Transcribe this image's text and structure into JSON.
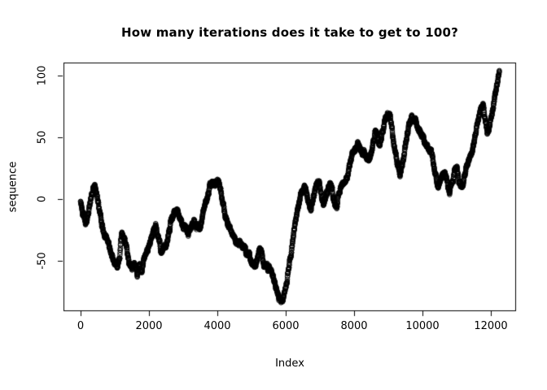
{
  "chart_data": {
    "type": "scatter",
    "title": "How many iterations does it take to get to 100?",
    "xlabel": "Index",
    "ylabel": "sequence",
    "x_ticks": [
      0,
      2000,
      4000,
      6000,
      8000,
      10000,
      12000
    ],
    "y_ticks": [
      -50,
      0,
      50,
      100
    ],
    "xlim": [
      -490,
      12740
    ],
    "ylim": [
      -90,
      109
    ],
    "grid": false,
    "legend": "none",
    "marker": "open-circle",
    "point_color": "#000000",
    "background": "#ffffff",
    "series": [
      {
        "name": "sequence",
        "keypoints": [
          [
            0,
            -3
          ],
          [
            40,
            -8
          ],
          [
            80,
            -13
          ],
          [
            120,
            -17
          ],
          [
            160,
            -20
          ],
          [
            200,
            -16
          ],
          [
            240,
            -11
          ],
          [
            280,
            -5
          ],
          [
            320,
            2
          ],
          [
            360,
            7
          ],
          [
            400,
            10
          ],
          [
            440,
            8
          ],
          [
            480,
            1
          ],
          [
            520,
            -5
          ],
          [
            560,
            -10
          ],
          [
            600,
            -16
          ],
          [
            650,
            -22
          ],
          [
            700,
            -27
          ],
          [
            750,
            -30
          ],
          [
            800,
            -34
          ],
          [
            850,
            -39
          ],
          [
            900,
            -44
          ],
          [
            950,
            -49
          ],
          [
            1000,
            -52
          ],
          [
            1050,
            -53
          ],
          [
            1100,
            -51
          ],
          [
            1140,
            -45
          ],
          [
            1180,
            -33
          ],
          [
            1220,
            -24
          ],
          [
            1260,
            -27
          ],
          [
            1300,
            -33
          ],
          [
            1340,
            -39
          ],
          [
            1380,
            -45
          ],
          [
            1420,
            -51
          ],
          [
            1460,
            -55
          ],
          [
            1500,
            -58
          ],
          [
            1540,
            -55
          ],
          [
            1580,
            -52
          ],
          [
            1620,
            -56
          ],
          [
            1660,
            -60
          ],
          [
            1700,
            -57
          ],
          [
            1740,
            -55
          ],
          [
            1780,
            -59
          ],
          [
            1820,
            -57
          ],
          [
            1860,
            -52
          ],
          [
            1900,
            -48
          ],
          [
            1950,
            -44
          ],
          [
            2000,
            -39
          ],
          [
            2050,
            -34
          ],
          [
            2100,
            -29
          ],
          [
            2150,
            -25
          ],
          [
            2200,
            -24
          ],
          [
            2250,
            -28
          ],
          [
            2300,
            -34
          ],
          [
            2350,
            -40
          ],
          [
            2400,
            -43
          ],
          [
            2450,
            -42
          ],
          [
            2500,
            -37
          ],
          [
            2550,
            -31
          ],
          [
            2600,
            -24
          ],
          [
            2650,
            -18
          ],
          [
            2700,
            -13
          ],
          [
            2750,
            -10
          ],
          [
            2800,
            -9
          ],
          [
            2850,
            -11
          ],
          [
            2900,
            -13
          ],
          [
            2950,
            -17
          ],
          [
            3000,
            -21
          ],
          [
            3050,
            -25
          ],
          [
            3100,
            -27
          ],
          [
            3150,
            -28
          ],
          [
            3200,
            -25
          ],
          [
            3250,
            -20
          ],
          [
            3300,
            -17
          ],
          [
            3350,
            -19
          ],
          [
            3400,
            -23
          ],
          [
            3450,
            -25
          ],
          [
            3500,
            -22
          ],
          [
            3550,
            -16
          ],
          [
            3600,
            -10
          ],
          [
            3650,
            -4
          ],
          [
            3700,
            1
          ],
          [
            3750,
            6
          ],
          [
            3800,
            11
          ],
          [
            3850,
            14
          ],
          [
            3900,
            16
          ],
          [
            3950,
            12
          ],
          [
            4000,
            15
          ],
          [
            4050,
            11
          ],
          [
            4100,
            4
          ],
          [
            4150,
            -3
          ],
          [
            4200,
            -9
          ],
          [
            4250,
            -15
          ],
          [
            4300,
            -20
          ],
          [
            4350,
            -21
          ],
          [
            4400,
            -25
          ],
          [
            4450,
            -29
          ],
          [
            4500,
            -32
          ],
          [
            4550,
            -34
          ],
          [
            4600,
            -36
          ],
          [
            4650,
            -34
          ],
          [
            4700,
            -37
          ],
          [
            4750,
            -36
          ],
          [
            4800,
            -40
          ],
          [
            4850,
            -43
          ],
          [
            4900,
            -45
          ],
          [
            4950,
            -47
          ],
          [
            5000,
            -50
          ],
          [
            5050,
            -53
          ],
          [
            5100,
            -55
          ],
          [
            5150,
            -50
          ],
          [
            5200,
            -45
          ],
          [
            5250,
            -42
          ],
          [
            5300,
            -46
          ],
          [
            5350,
            -50
          ],
          [
            5400,
            -52
          ],
          [
            5450,
            -54
          ],
          [
            5500,
            -55
          ],
          [
            5550,
            -58
          ],
          [
            5600,
            -61
          ],
          [
            5650,
            -65
          ],
          [
            5700,
            -70
          ],
          [
            5750,
            -75
          ],
          [
            5800,
            -80
          ],
          [
            5850,
            -82
          ],
          [
            5900,
            -81
          ],
          [
            5950,
            -77
          ],
          [
            6000,
            -70
          ],
          [
            6050,
            -62
          ],
          [
            6100,
            -52
          ],
          [
            6150,
            -43
          ],
          [
            6200,
            -34
          ],
          [
            6250,
            -25
          ],
          [
            6300,
            -17
          ],
          [
            6350,
            -9
          ],
          [
            6400,
            -2
          ],
          [
            6450,
            5
          ],
          [
            6500,
            10
          ],
          [
            6550,
            12
          ],
          [
            6600,
            5
          ],
          [
            6650,
            -3
          ],
          [
            6700,
            -9
          ],
          [
            6750,
            -7
          ],
          [
            6800,
            -1
          ],
          [
            6850,
            6
          ],
          [
            6900,
            11
          ],
          [
            6950,
            12
          ],
          [
            7000,
            8
          ],
          [
            7050,
            2
          ],
          [
            7100,
            -4
          ],
          [
            7150,
            -2
          ],
          [
            7200,
            5
          ],
          [
            7250,
            11
          ],
          [
            7300,
            13
          ],
          [
            7350,
            8
          ],
          [
            7400,
            2
          ],
          [
            7450,
            -3
          ],
          [
            7500,
            -4
          ],
          [
            7550,
            2
          ],
          [
            7600,
            9
          ],
          [
            7650,
            13
          ],
          [
            7700,
            14
          ],
          [
            7750,
            16
          ],
          [
            7800,
            19
          ],
          [
            7850,
            24
          ],
          [
            7900,
            29
          ],
          [
            7950,
            34
          ],
          [
            8000,
            38
          ],
          [
            8050,
            41
          ],
          [
            8100,
            43
          ],
          [
            8150,
            43
          ],
          [
            8200,
            40
          ],
          [
            8250,
            37
          ],
          [
            8300,
            40
          ],
          [
            8350,
            37
          ],
          [
            8400,
            33
          ],
          [
            8450,
            31
          ],
          [
            8500,
            36
          ],
          [
            8550,
            44
          ],
          [
            8600,
            51
          ],
          [
            8650,
            54
          ],
          [
            8700,
            48
          ],
          [
            8750,
            42
          ],
          [
            8800,
            48
          ],
          [
            8850,
            57
          ],
          [
            8900,
            63
          ],
          [
            8950,
            67
          ],
          [
            9000,
            70
          ],
          [
            9050,
            68
          ],
          [
            9100,
            61
          ],
          [
            9150,
            52
          ],
          [
            9200,
            42
          ],
          [
            9250,
            33
          ],
          [
            9300,
            26
          ],
          [
            9350,
            22
          ],
          [
            9400,
            27
          ],
          [
            9450,
            35
          ],
          [
            9500,
            43
          ],
          [
            9550,
            51
          ],
          [
            9600,
            58
          ],
          [
            9650,
            63
          ],
          [
            9700,
            66
          ],
          [
            9750,
            67
          ],
          [
            9800,
            64
          ],
          [
            9850,
            61
          ],
          [
            9900,
            58
          ],
          [
            9950,
            55
          ],
          [
            10000,
            52
          ],
          [
            10050,
            48
          ],
          [
            10100,
            45
          ],
          [
            10150,
            44
          ],
          [
            10200,
            42
          ],
          [
            10250,
            38
          ],
          [
            10300,
            31
          ],
          [
            10350,
            23
          ],
          [
            10400,
            16
          ],
          [
            10450,
            12
          ],
          [
            10500,
            14
          ],
          [
            10550,
            17
          ],
          [
            10600,
            20
          ],
          [
            10650,
            21
          ],
          [
            10700,
            15
          ],
          [
            10750,
            9
          ],
          [
            10800,
            7
          ],
          [
            10850,
            13
          ],
          [
            10900,
            19
          ],
          [
            10950,
            25
          ],
          [
            11000,
            27
          ],
          [
            11050,
            20
          ],
          [
            11100,
            12
          ],
          [
            11150,
            9
          ],
          [
            11200,
            14
          ],
          [
            11250,
            20
          ],
          [
            11300,
            26
          ],
          [
            11350,
            31
          ],
          [
            11400,
            34
          ],
          [
            11450,
            38
          ],
          [
            11500,
            44
          ],
          [
            11550,
            52
          ],
          [
            11600,
            60
          ],
          [
            11650,
            67
          ],
          [
            11700,
            72
          ],
          [
            11750,
            76
          ],
          [
            11800,
            70
          ],
          [
            11850,
            59
          ],
          [
            11900,
            52
          ],
          [
            11950,
            57
          ],
          [
            12000,
            64
          ],
          [
            12050,
            72
          ],
          [
            12100,
            80
          ],
          [
            12150,
            88
          ],
          [
            12200,
            95
          ],
          [
            12250,
            101
          ]
        ]
      }
    ]
  }
}
